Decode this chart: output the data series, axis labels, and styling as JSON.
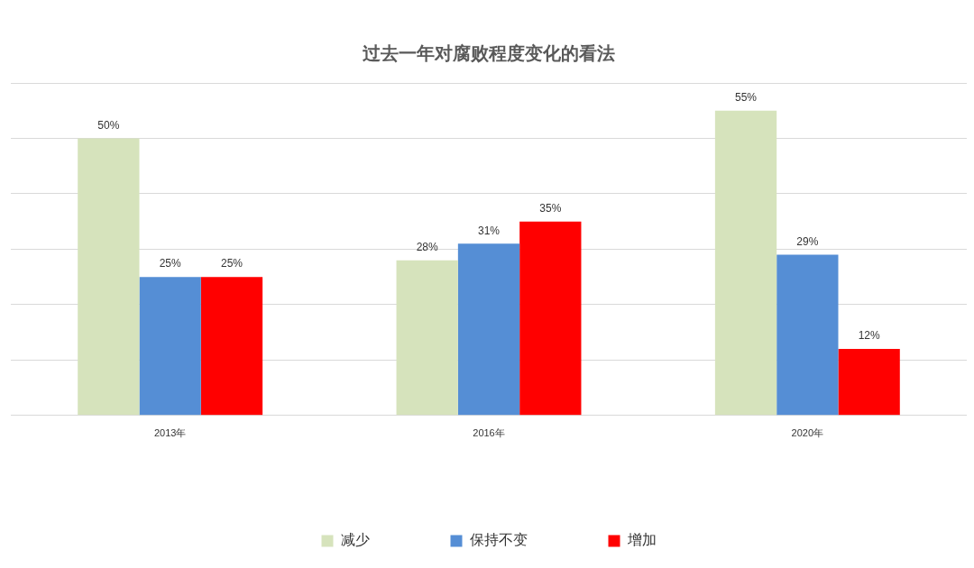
{
  "chart_data": {
    "type": "bar",
    "title": "过去一年对腐败程度变化的看法",
    "categories": [
      "2013年",
      "2016年",
      "2020年"
    ],
    "series": [
      {
        "name": "减少",
        "color": "#d6e3bc",
        "values": [
          50,
          28,
          55
        ],
        "value_labels": [
          "50%",
          "28%",
          "55%"
        ]
      },
      {
        "name": "保持不变",
        "color": "#558ed5",
        "values": [
          25,
          31,
          29
        ],
        "value_labels": [
          "25%",
          "31%",
          "29%"
        ]
      },
      {
        "name": "增加",
        "color": "#ff0000",
        "values": [
          25,
          35,
          12
        ],
        "value_labels": [
          "25%",
          "35%",
          "12%"
        ]
      }
    ],
    "ylim": [
      0,
      60
    ],
    "yticks": [
      0,
      10,
      20,
      30,
      40,
      50,
      60
    ],
    "grid": "y",
    "legend": "bottom",
    "tick_labels": "x"
  }
}
